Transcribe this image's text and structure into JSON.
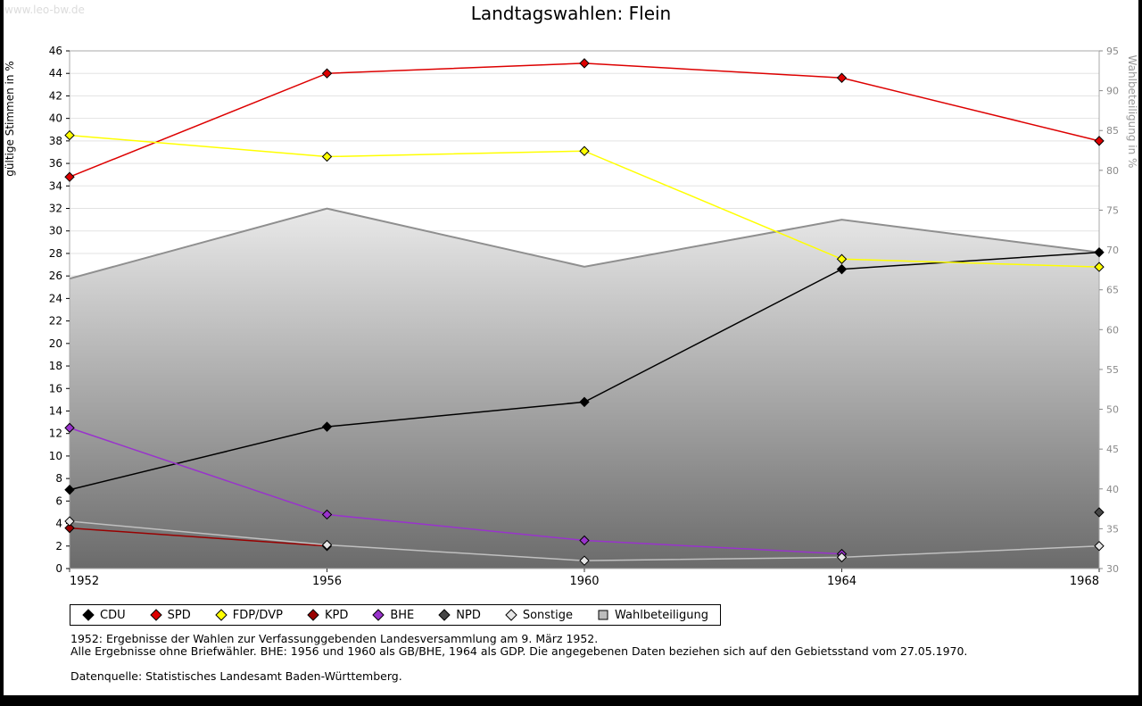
{
  "page": {
    "watermark": "www.leo-bw.de",
    "title": "Landtagswahlen: Flein"
  },
  "chart_data": {
    "type": "line",
    "title": "Landtagswahlen: Flein",
    "x": [
      1952,
      1956,
      1960,
      1964,
      1968
    ],
    "left_axis": {
      "label": "gültige Stimmen in %",
      "min": 0,
      "max": 46,
      "step": 2
    },
    "right_axis": {
      "label": "Wahlbeteiligung in %",
      "min": 30,
      "max": 95,
      "step": 5
    },
    "grid": true,
    "legend_position": "bottom",
    "series": [
      {
        "name": "CDU",
        "color": "#000000",
        "values": [
          7.0,
          12.6,
          14.8,
          26.6,
          28.1
        ]
      },
      {
        "name": "SPD",
        "color": "#dd0000",
        "values": [
          34.8,
          44.0,
          44.9,
          43.6,
          38.0
        ]
      },
      {
        "name": "FDP/DVP",
        "color": "#ffff00",
        "values": [
          38.5,
          36.6,
          37.1,
          27.5,
          26.8
        ]
      },
      {
        "name": "KPD",
        "color": "#990000",
        "values": [
          3.6,
          2.0,
          null,
          null,
          null
        ]
      },
      {
        "name": "BHE",
        "color": "#9933cc",
        "values": [
          12.5,
          4.8,
          2.5,
          1.3,
          null
        ]
      },
      {
        "name": "NPD",
        "color": "#464646",
        "values": [
          null,
          null,
          null,
          null,
          5.0
        ]
      },
      {
        "name": "Sonstige",
        "color": "#c0c0c0",
        "marker_fill": "#e6e6e6",
        "values": [
          4.2,
          2.1,
          0.7,
          1.0,
          2.0
        ]
      }
    ],
    "area_series": {
      "name": "Wahlbeteiligung",
      "axis": "right",
      "values": [
        66.4,
        75.2,
        67.9,
        73.8,
        69.7
      ],
      "fill_top": "#e9e9e9",
      "fill_bottom": "#6b6b6b",
      "stroke": "#8f8f8f",
      "legend_fill": "#bcbcbc"
    }
  },
  "footnotes": [
    "1952: Ergebnisse der Wahlen zur Verfassunggebenden Landesversammlung am 9. März 1952.",
    "Alle Ergebnisse ohne Briefwähler. BHE: 1956 und 1960 als GB/BHE, 1964 als GDP. Die angegebenen Daten beziehen sich auf den Gebietsstand vom 27.05.1970.",
    "Datenquelle: Statistisches Landesamt Baden-Württemberg."
  ]
}
